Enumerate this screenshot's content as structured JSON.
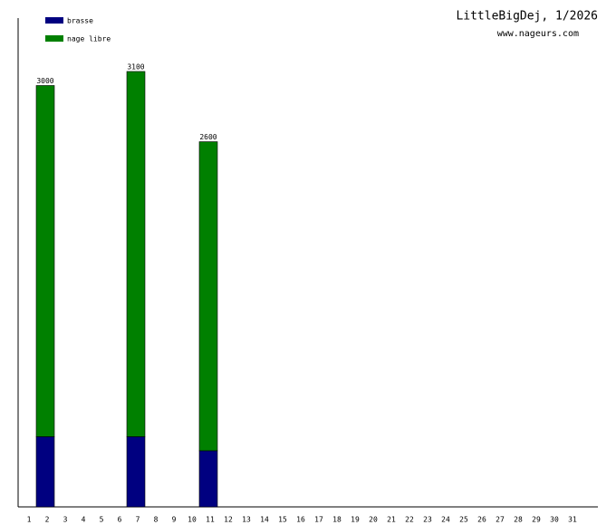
{
  "chart_data": {
    "type": "stacked-bar",
    "title": "LittleBigDej, 1/2026",
    "subtitle": "www.nageurs.com",
    "categories": [
      "1",
      "2",
      "3",
      "4",
      "5",
      "6",
      "7",
      "8",
      "9",
      "10",
      "11",
      "12",
      "13",
      "14",
      "15",
      "16",
      "17",
      "18",
      "19",
      "20",
      "21",
      "22",
      "23",
      "24",
      "25",
      "26",
      "27",
      "28",
      "29",
      "30",
      "31"
    ],
    "series": [
      {
        "name": "brasse",
        "color": "#000080",
        "values": [
          null,
          500,
          null,
          null,
          null,
          null,
          500,
          null,
          null,
          null,
          400,
          null,
          null,
          null,
          null,
          null,
          null,
          null,
          null,
          null,
          null,
          null,
          null,
          null,
          null,
          null,
          null,
          null,
          null,
          null,
          null
        ]
      },
      {
        "name": "nage libre",
        "color": "#008000",
        "values": [
          null,
          2500,
          null,
          null,
          null,
          null,
          2600,
          null,
          null,
          null,
          2200,
          null,
          null,
          null,
          null,
          null,
          null,
          null,
          null,
          null,
          null,
          null,
          null,
          null,
          null,
          null,
          null,
          null,
          null,
          null,
          null
        ]
      }
    ],
    "totals": [
      null,
      3000,
      null,
      null,
      null,
      null,
      3100,
      null,
      null,
      null,
      2600,
      null,
      null,
      null,
      null,
      null,
      null,
      null,
      null,
      null,
      null,
      null,
      null,
      null,
      null,
      null,
      null,
      null,
      null,
      null,
      null
    ],
    "ylim": [
      0,
      3480
    ],
    "legend": "top-left"
  }
}
